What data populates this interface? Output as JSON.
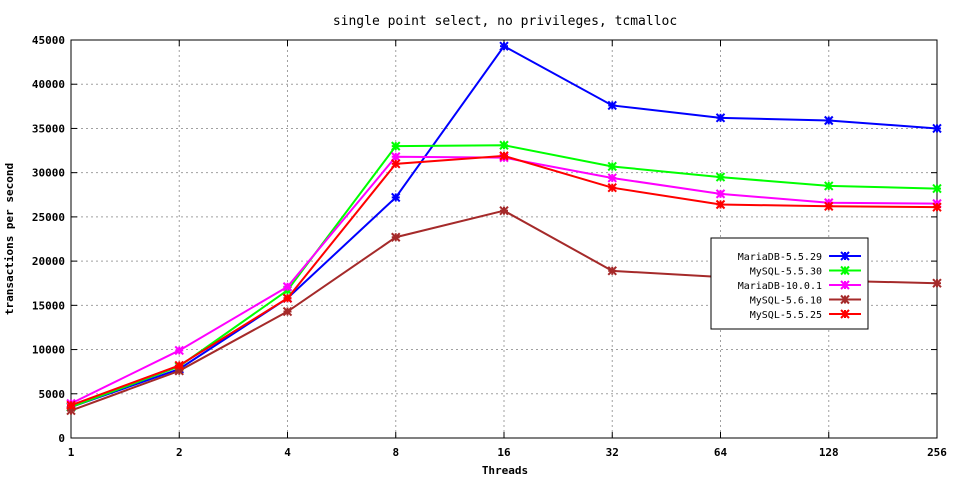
{
  "chart_data": {
    "type": "line",
    "title": "single point select, no privileges, tcmalloc",
    "xlabel": "Threads",
    "ylabel": "transactions per second",
    "x": [
      "1",
      "2",
      "4",
      "8",
      "16",
      "32",
      "64",
      "128",
      "256"
    ],
    "ylim": [
      0,
      45000
    ],
    "yticks": [
      0,
      5000,
      10000,
      15000,
      20000,
      25000,
      30000,
      35000,
      40000,
      45000
    ],
    "grid": true,
    "legend_position": "right",
    "series": [
      {
        "name": "MariaDB-5.5.29",
        "color": "#0000ff",
        "values": [
          3500,
          7800,
          15800,
          27200,
          44300,
          37600,
          36200,
          35900,
          35000
        ]
      },
      {
        "name": "MySQL-5.5.30",
        "color": "#00ff00",
        "values": [
          3500,
          8100,
          16700,
          33000,
          33100,
          30700,
          29500,
          28500,
          28200
        ]
      },
      {
        "name": "MariaDB-10.0.1",
        "color": "#ff00ff",
        "values": [
          3900,
          9900,
          17100,
          31800,
          31700,
          29400,
          27600,
          26600,
          26500
        ]
      },
      {
        "name": "MySQL-5.6.10",
        "color": "#a52a2a",
        "values": [
          3100,
          7600,
          14300,
          22700,
          25700,
          18900,
          18200,
          17800,
          17500
        ]
      },
      {
        "name": "MySQL-5.5.25",
        "color": "#ff0000",
        "values": [
          3700,
          8200,
          15800,
          31000,
          31900,
          28300,
          26400,
          26200,
          26100
        ]
      }
    ]
  }
}
